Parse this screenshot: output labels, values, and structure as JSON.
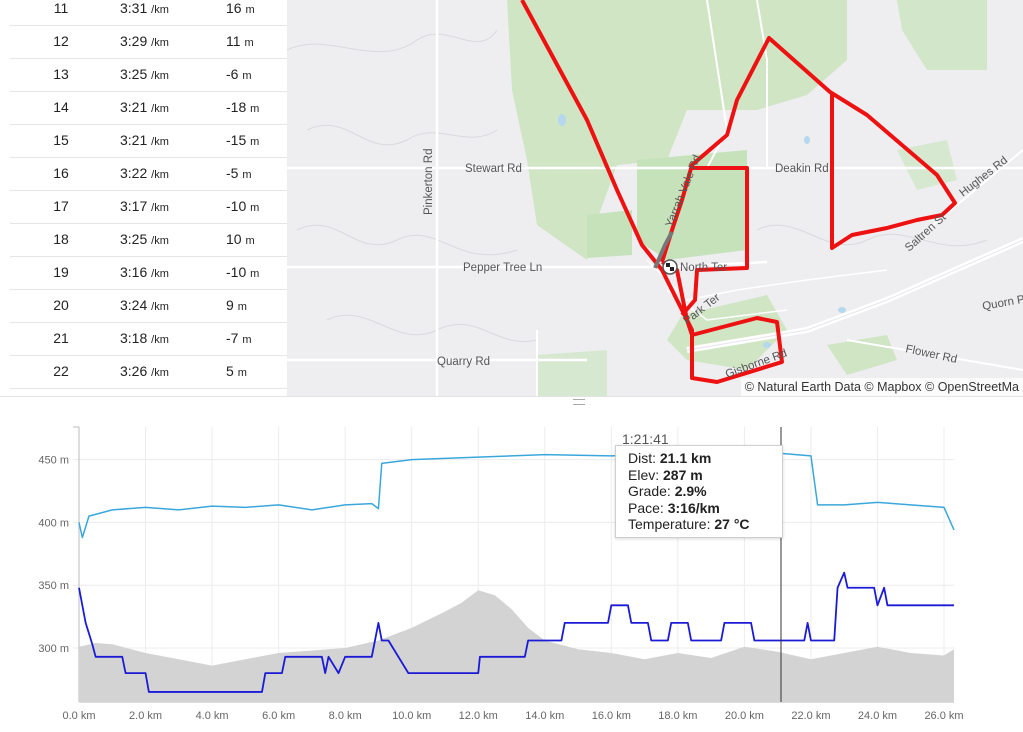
{
  "splits": {
    "rows": [
      {
        "km": "11",
        "pace": "3:31",
        "pace_unit": "/km",
        "elev": "16",
        "elev_unit": "m"
      },
      {
        "km": "12",
        "pace": "3:29",
        "pace_unit": "/km",
        "elev": "11",
        "elev_unit": "m"
      },
      {
        "km": "13",
        "pace": "3:25",
        "pace_unit": "/km",
        "elev": "-6",
        "elev_unit": "m"
      },
      {
        "km": "14",
        "pace": "3:21",
        "pace_unit": "/km",
        "elev": "-18",
        "elev_unit": "m"
      },
      {
        "km": "15",
        "pace": "3:21",
        "pace_unit": "/km",
        "elev": "-15",
        "elev_unit": "m"
      },
      {
        "km": "16",
        "pace": "3:22",
        "pace_unit": "/km",
        "elev": "-5",
        "elev_unit": "m"
      },
      {
        "km": "17",
        "pace": "3:17",
        "pace_unit": "/km",
        "elev": "-10",
        "elev_unit": "m"
      },
      {
        "km": "18",
        "pace": "3:25",
        "pace_unit": "/km",
        "elev": "10",
        "elev_unit": "m"
      },
      {
        "km": "19",
        "pace": "3:16",
        "pace_unit": "/km",
        "elev": "-10",
        "elev_unit": "m"
      },
      {
        "km": "20",
        "pace": "3:24",
        "pace_unit": "/km",
        "elev": "9",
        "elev_unit": "m"
      },
      {
        "km": "21",
        "pace": "3:18",
        "pace_unit": "/km",
        "elev": "-7",
        "elev_unit": "m"
      },
      {
        "km": "22",
        "pace": "3:26",
        "pace_unit": "/km",
        "elev": "5",
        "elev_unit": "m"
      }
    ]
  },
  "map": {
    "roads": [
      "Stewart Rd",
      "Deakin Rd",
      "Pinkerton Rd",
      "Pepper Tree Ln",
      "Quarry Rd",
      "Flower Rd",
      "Hughes Rd",
      "Quorn P",
      "North Ter",
      "Saltren St",
      "Yarrah Vale Rd",
      "Park Ter",
      "Gisborne Rd"
    ],
    "attribution": "© Natural Earth Data © Mapbox © OpenStreetMa",
    "route_color": "#ee1111",
    "finish_icon": "checkered-flag-icon"
  },
  "tooltip": {
    "time": "1:21:41",
    "dist_label": "Dist:",
    "dist_value": "21.1 km",
    "elev_label": "Elev:",
    "elev_value": "287 m",
    "grade_label": "Grade:",
    "grade_value": "2.9%",
    "pace_label": "Pace:",
    "pace_value": "3:16/km",
    "temp_label": "Temperature:",
    "temp_value": "27 °C"
  },
  "chart_data": {
    "type": "line",
    "y_ticks": [
      "450 m",
      "400 m",
      "350 m",
      "300 m"
    ],
    "x_ticks": [
      "0.0 km",
      "2.0 km",
      "4.0 km",
      "6.0 km",
      "8.0 km",
      "10.0 km",
      "12.0 km",
      "14.0 km",
      "16.0 km",
      "18.0 km",
      "20.0 km",
      "22.0 km",
      "24.0 km",
      "26.0 km"
    ],
    "x_range": [
      0,
      26.3
    ],
    "y_range": [
      257,
      476
    ],
    "cursor_x": 21.1,
    "colors": {
      "blue_line": "#3aa7dc",
      "pace_line": "#1b1bd6",
      "area": "#d3d3d3",
      "cursor": "#333333",
      "grid": "#ececec"
    },
    "series": [
      {
        "style": "blue-line",
        "x": [
          0,
          0.1,
          0.3,
          1,
          2,
          3,
          4,
          5,
          6,
          7,
          8,
          8.8,
          9,
          9.1,
          10,
          12,
          14,
          16,
          18,
          20,
          21.1,
          22,
          22.2,
          23,
          24,
          25,
          26,
          26.3
        ],
        "y": [
          400,
          388,
          405,
          410,
          412,
          410,
          413,
          412,
          414,
          410,
          414,
          415,
          411,
          447,
          450,
          452,
          454,
          453,
          455,
          452,
          455,
          453,
          414,
          414,
          416,
          414,
          412,
          394
        ]
      },
      {
        "style": "pace-line",
        "x": [
          0,
          0.2,
          0.4,
          0.5,
          1.3,
          1.4,
          2.0,
          2.1,
          3.6,
          5.5,
          5.6,
          6.1,
          6.2,
          7.3,
          7.4,
          7.5,
          7.8,
          8.0,
          8.8,
          9.0,
          9.1,
          9.3,
          9.9,
          10.0,
          12.0,
          12.05,
          13.4,
          13.5,
          14.5,
          14.6,
          15.9,
          16.0,
          16.5,
          16.6,
          17.1,
          17.2,
          17.7,
          17.8,
          18.3,
          18.4,
          19.3,
          19.4,
          20.2,
          20.3,
          21.0,
          21.1,
          21.8,
          21.9,
          22.0,
          22.2,
          22.7,
          22.8,
          23.0,
          23.1,
          23.3,
          23.9,
          24.0,
          24.2,
          24.3,
          26.3
        ],
        "y": [
          348,
          320,
          303,
          293,
          293,
          280,
          280,
          265,
          265,
          265,
          280,
          280,
          293,
          293,
          280,
          293,
          280,
          293,
          293,
          320,
          306,
          306,
          280,
          280,
          280,
          293,
          293,
          306,
          306,
          320,
          320,
          334,
          334,
          320,
          320,
          306,
          306,
          320,
          320,
          306,
          306,
          320,
          320,
          306,
          306,
          306,
          306,
          320,
          306,
          306,
          306,
          348,
          360,
          348,
          348,
          348,
          334,
          348,
          334,
          334
        ]
      },
      {
        "style": "grey-area",
        "x": [
          0,
          0.5,
          1,
          2,
          3,
          4,
          5,
          6,
          7,
          8,
          9,
          10,
          11,
          11.5,
          12,
          12.5,
          13,
          13.5,
          14,
          15,
          16,
          17,
          18,
          19,
          20,
          21,
          22,
          23,
          24,
          25,
          26,
          26.3
        ],
        "y": [
          301,
          304,
          303,
          296,
          291,
          286,
          291,
          296,
          298,
          300,
          306,
          316,
          329,
          336,
          346,
          342,
          331,
          316,
          306,
          299,
          296,
          291,
          296,
          292,
          301,
          297,
          291,
          296,
          301,
          296,
          294,
          299
        ]
      }
    ]
  }
}
